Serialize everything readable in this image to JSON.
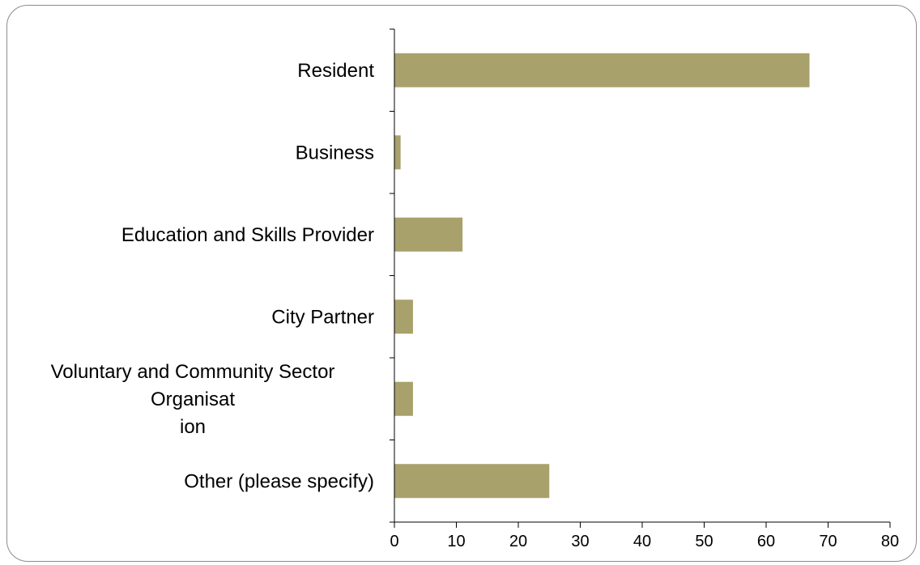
{
  "chart_data": {
    "type": "bar",
    "orientation": "horizontal",
    "categories": [
      [
        "Resident"
      ],
      [
        "Business"
      ],
      [
        "Education and Skills Provider"
      ],
      [
        "City Partner"
      ],
      [
        "Voluntary and Community Sector",
        "Organisat",
        "ion"
      ],
      [
        "Other (please specify)"
      ]
    ],
    "values": [
      67,
      1,
      11,
      3,
      3,
      25
    ],
    "xlim": [
      0,
      80
    ],
    "xticks": [
      0,
      10,
      20,
      30,
      40,
      50,
      60,
      70,
      80
    ],
    "bar_color": "#a9a16c",
    "grid": false,
    "legend": "none",
    "title": "",
    "xlabel": "",
    "ylabel": ""
  }
}
